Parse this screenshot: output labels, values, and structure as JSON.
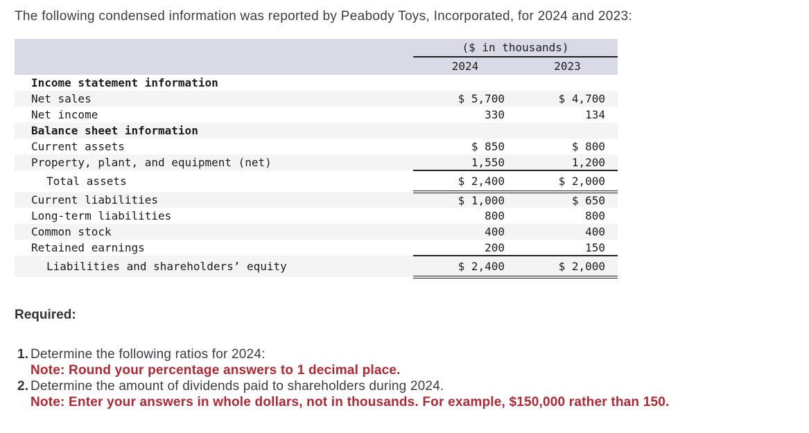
{
  "title": "The following condensed information was reported by Peabody Toys, Incorporated, for 2024 and 2023:",
  "table": {
    "unit_header": "($ in thousands)",
    "col_headers": [
      "2024",
      "2023"
    ],
    "rows": [
      {
        "label": "Income statement information",
        "v2024": "",
        "v2023": ""
      },
      {
        "label": "Net sales",
        "v2024": "$ 5,700",
        "v2023": "$ 4,700"
      },
      {
        "label": "Net income",
        "v2024": "330",
        "v2023": "134"
      },
      {
        "label": "Balance sheet information",
        "v2024": "",
        "v2023": ""
      },
      {
        "label": "Current assets",
        "v2024": "$ 850",
        "v2023": "$ 800"
      },
      {
        "label": "Property, plant, and equipment (net)",
        "v2024": "1,550",
        "v2023": "1,200"
      },
      {
        "label": "Total assets",
        "v2024": "$ 2,400",
        "v2023": "$ 2,000"
      },
      {
        "label": "Current liabilities",
        "v2024": "$ 1,000",
        "v2023": "$ 650"
      },
      {
        "label": "Long-term liabilities",
        "v2024": "800",
        "v2023": "800"
      },
      {
        "label": "Common stock",
        "v2024": "400",
        "v2023": "400"
      },
      {
        "label": "Retained earnings",
        "v2024": "200",
        "v2023": "150"
      },
      {
        "label": "Liabilities and shareholders’ equity",
        "v2024": "$ 2,400",
        "v2023": "$ 2,000"
      }
    ]
  },
  "required": {
    "heading": "Required:",
    "items": [
      {
        "number": "1.",
        "text": "Determine the following ratios for 2024:",
        "note": "Note: Round your percentage answers to 1 decimal place."
      },
      {
        "number": "2.",
        "text": "Determine the amount of dividends paid to shareholders during 2024.",
        "note": "Note: Enter your answers in whole dollars, not in thousands. For example, $150,000 rather than 150."
      }
    ]
  },
  "colors": {
    "header_band": "#d8dbe5",
    "row_stripe": "#f4f4f4",
    "note_red": "#b12732",
    "body_text": "#3e3e42",
    "table_text": "#1a1a1a"
  }
}
